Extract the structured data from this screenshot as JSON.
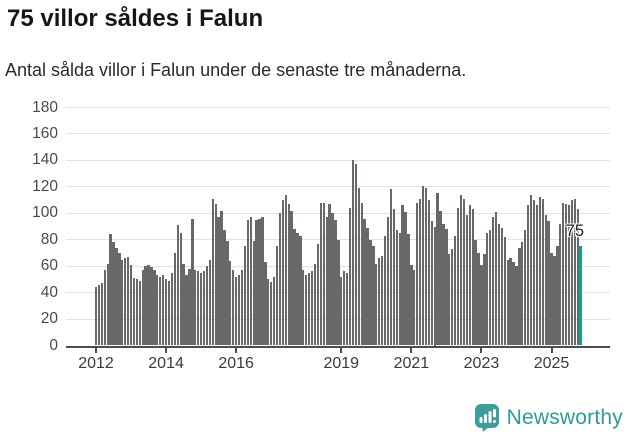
{
  "title": "75 villor såldes i Falun",
  "subtitle": "Antal sålda villor i Falun under de senaste tre månaderna.",
  "chart_data": {
    "type": "bar",
    "title": "75 villor såldes i Falun",
    "subtitle": "Antal sålda villor i Falun under de senaste tre månaderna.",
    "frequency": "monthly",
    "x_start": "2012-01",
    "x_end": "2025-11",
    "ylim": [
      0,
      180
    ],
    "grid": true,
    "y_ticks": [
      0,
      20,
      40,
      60,
      80,
      100,
      120,
      140,
      160,
      180
    ],
    "x_tick_labels": [
      "2012",
      "2014",
      "2016",
      "2019",
      "2021",
      "2023",
      "2025"
    ],
    "x_tick_years": [
      2012,
      2014,
      2016,
      2019,
      2021,
      2023,
      2025
    ],
    "bar_color": "#6a676b",
    "highlight_color": "#12a09a",
    "highlight_index": 166,
    "highlight_label": "75",
    "values": [
      44,
      46,
      47,
      57,
      62,
      84,
      78,
      74,
      70,
      65,
      66,
      67,
      61,
      51,
      50,
      49,
      57,
      60,
      61,
      59,
      57,
      53,
      52,
      53,
      50,
      49,
      55,
      70,
      91,
      85,
      62,
      53,
      58,
      96,
      57,
      56,
      55,
      56,
      60,
      65,
      111,
      107,
      97,
      102,
      87,
      79,
      64,
      57,
      52,
      53,
      57,
      75,
      95,
      97,
      79,
      95,
      96,
      97,
      63,
      50,
      48,
      52,
      75,
      100,
      110,
      114,
      107,
      102,
      88,
      85,
      83,
      57,
      53,
      55,
      56,
      62,
      77,
      108,
      108,
      97,
      107,
      100,
      95,
      80,
      52,
      56,
      55,
      104,
      140,
      137,
      119,
      108,
      96,
      89,
      80,
      75,
      62,
      66,
      68,
      83,
      97,
      118,
      103,
      87,
      85,
      106,
      101,
      84,
      61,
      57,
      108,
      111,
      121,
      119,
      110,
      94,
      90,
      115,
      102,
      92,
      88,
      69,
      73,
      83,
      104,
      114,
      111,
      99,
      106,
      103,
      80,
      70,
      61,
      69,
      85,
      87,
      97,
      101,
      92,
      89,
      82,
      65,
      66,
      63,
      60,
      74,
      78,
      87,
      106,
      114,
      110,
      106,
      112,
      111,
      99,
      94,
      70,
      68,
      75,
      92,
      108,
      107,
      106,
      110,
      111,
      103,
      75
    ]
  },
  "footer": {
    "brand": "Newsworthy",
    "logo_icon": "newsworthy-speech-bubble-chart-icon",
    "brand_color": "#2e9b94",
    "logo_fill": "#3d9e99"
  }
}
